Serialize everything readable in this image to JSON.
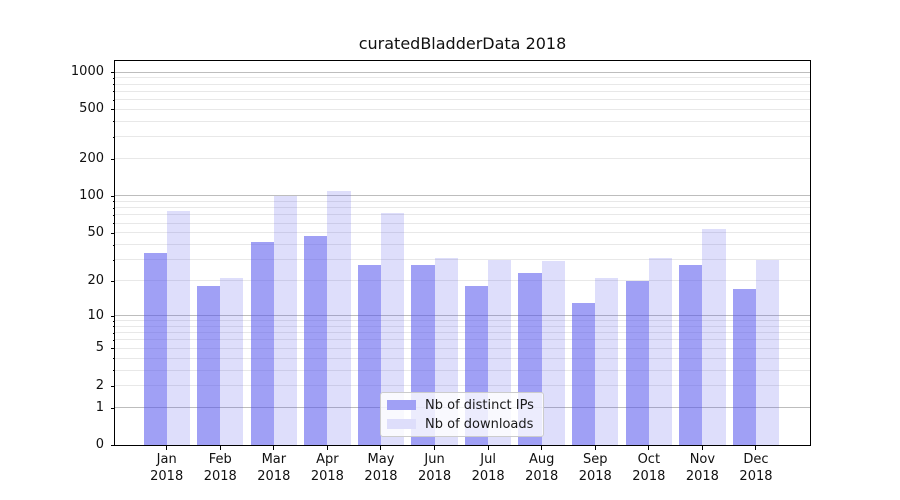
{
  "title": "curatedBladderData 2018",
  "chart_data": {
    "type": "bar",
    "categories": [
      "Jan",
      "Feb",
      "Mar",
      "Apr",
      "May",
      "Jun",
      "Jul",
      "Aug",
      "Sep",
      "Oct",
      "Nov",
      "Dec"
    ],
    "year": "2018",
    "series": [
      {
        "name": "Nb of distinct IPs",
        "values": [
          34,
          18,
          42,
          47,
          27,
          27,
          18,
          23,
          13,
          20,
          27,
          17
        ],
        "fill": "rgba(82,82,236,0.55)",
        "swatch": "#a0a0f5"
      },
      {
        "name": "Nb of downloads",
        "values": [
          75,
          21,
          100,
          110,
          73,
          31,
          30,
          29,
          21,
          31,
          54,
          30
        ],
        "fill": "rgba(82,82,236,0.19)",
        "swatch": "#dedefb"
      }
    ],
    "yscale": "log1p",
    "y_ticks": [
      0,
      1,
      2,
      5,
      10,
      20,
      50,
      100,
      200,
      500,
      1000
    ],
    "y_minor_ticks": [
      2,
      3,
      4,
      5,
      6,
      7,
      8,
      9,
      20,
      30,
      40,
      50,
      60,
      70,
      80,
      90,
      200,
      300,
      400,
      500,
      600,
      700,
      800,
      900
    ],
    "ylim": [
      0,
      1220
    ],
    "xlabel": "",
    "ylabel": "",
    "grid": "on",
    "legend_position": "lower-center"
  },
  "colors": {
    "grid_major": "#bdbdbd",
    "grid_minor": "#e8e8e8",
    "spine": "#000000"
  }
}
